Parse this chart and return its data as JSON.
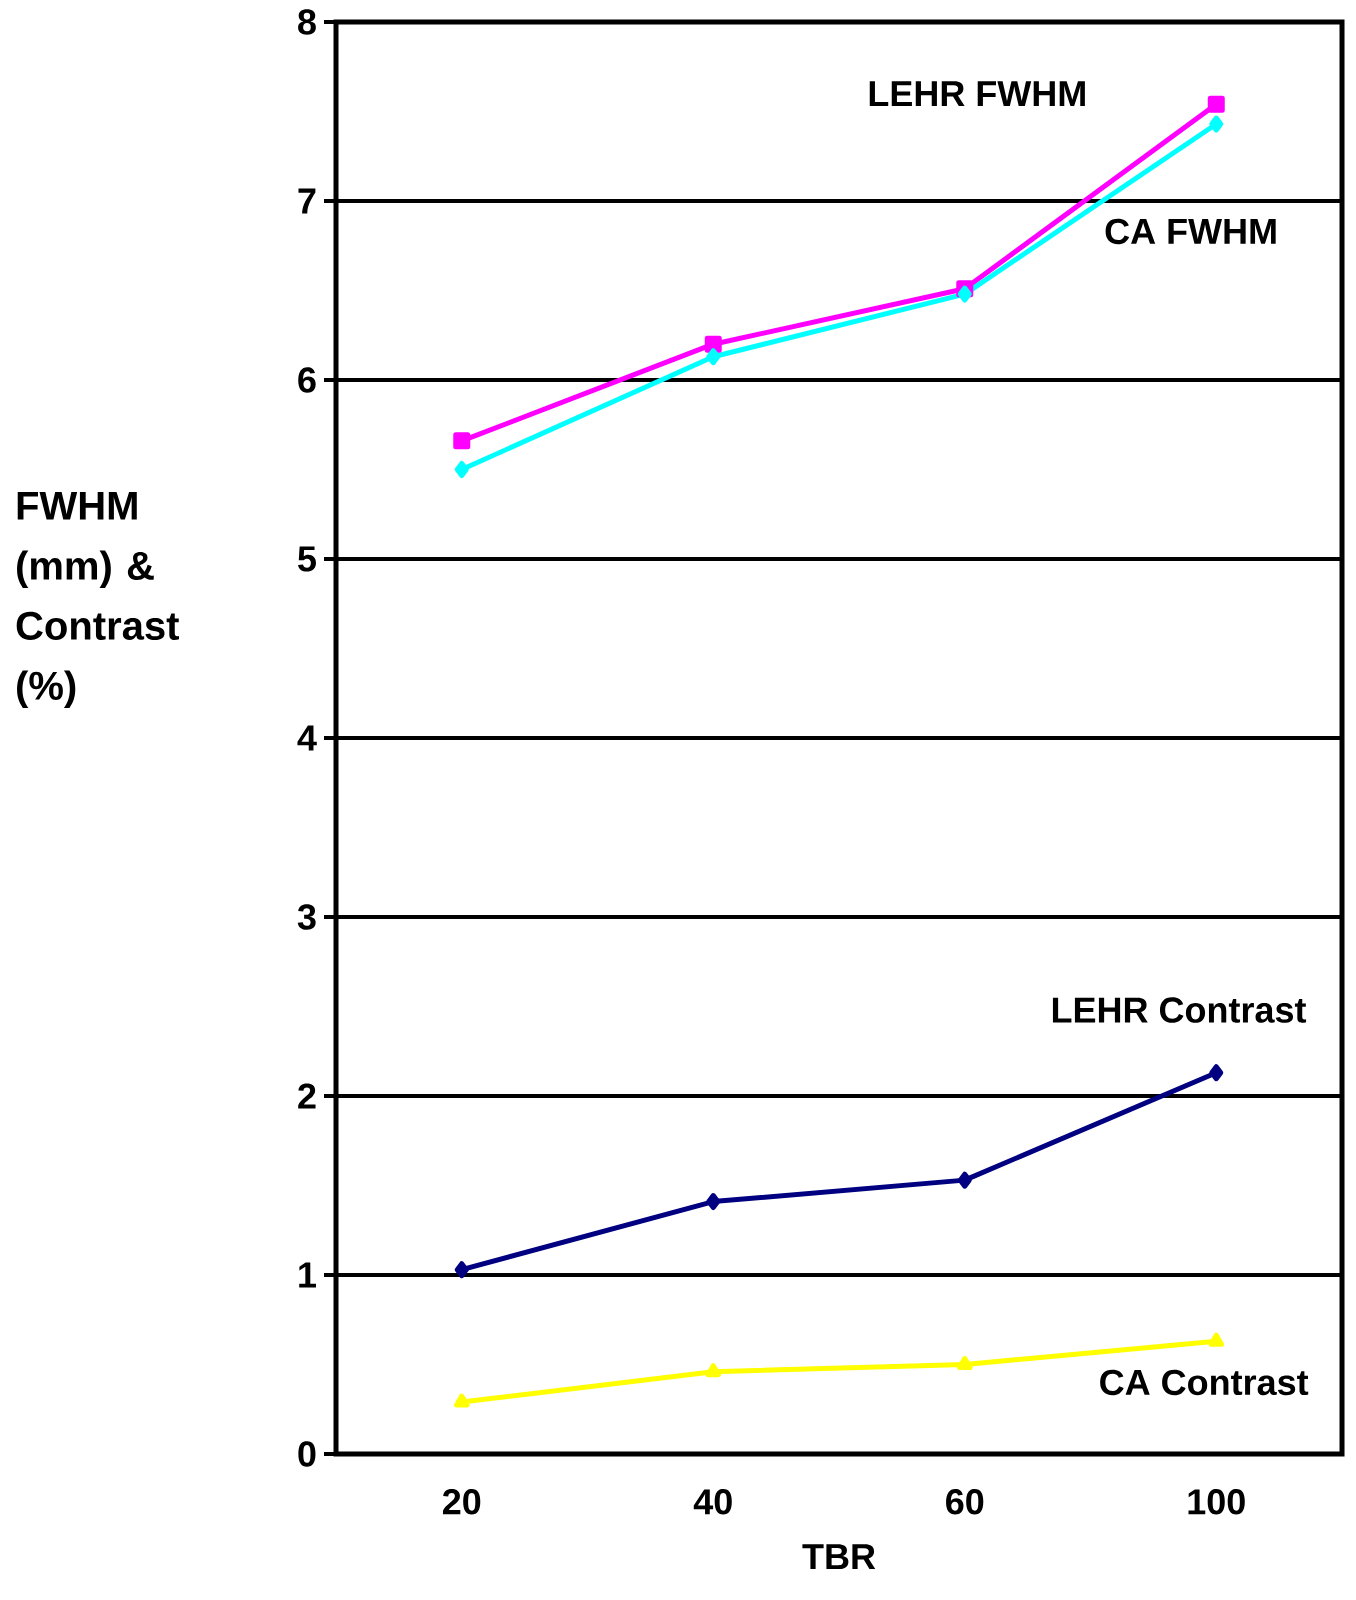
{
  "chart_data": {
    "type": "line",
    "xlabel": "TBR",
    "ylabel": "FWHM (mm) & Contrast (%)",
    "categories": [
      "20",
      "40",
      "60",
      "100"
    ],
    "ylim": [
      0,
      8
    ],
    "yticks": [
      0,
      1,
      2,
      3,
      4,
      5,
      6,
      7,
      8
    ],
    "grid": "y",
    "line_style": "solid",
    "series": [
      {
        "name": "LEHR FWHM",
        "color": "#ff00ff",
        "marker": "square",
        "values": [
          5.66,
          6.2,
          6.51,
          7.54
        ]
      },
      {
        "name": "CA FWHM",
        "color": "#00ffff",
        "marker": "diamond",
        "values": [
          5.5,
          6.13,
          6.48,
          7.43
        ]
      },
      {
        "name": "LEHR Contrast",
        "color": "#000080",
        "marker": "diamond",
        "values": [
          1.03,
          1.41,
          1.53,
          2.13
        ]
      },
      {
        "name": "CA Contrast",
        "color": "#ffff00",
        "marker": "triangle",
        "values": [
          0.29,
          0.46,
          0.5,
          0.63
        ]
      }
    ]
  }
}
